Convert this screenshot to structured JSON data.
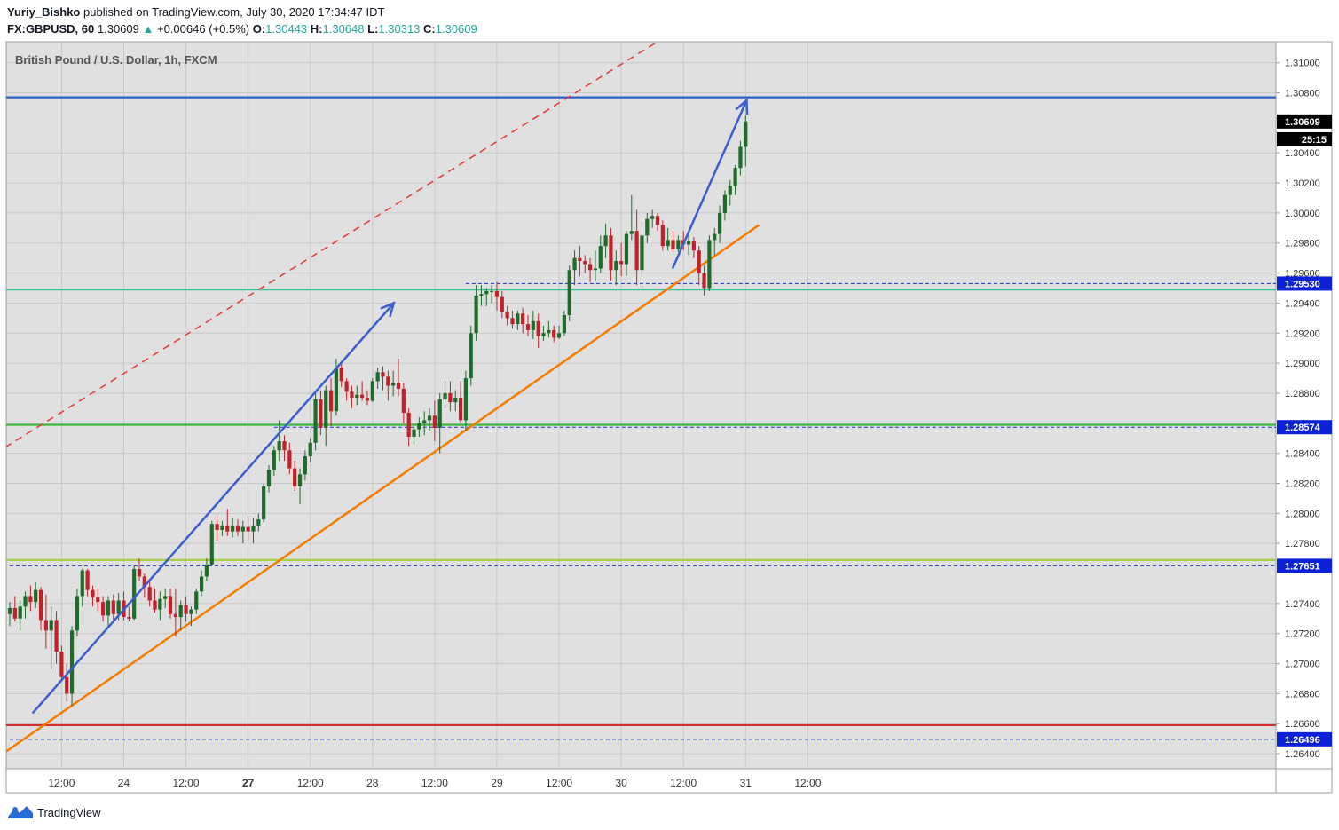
{
  "header": {
    "author": "Yuriy_Bishko",
    "published_text": "published on TradingView.com, July 30, 2020 17:34:47 IDT",
    "symbol": "FX:GBPUSD, 60",
    "last": "1.30609",
    "change": "+0.00646 (+0.5%)",
    "o_label": "O:",
    "o_value": "1.30443",
    "h_label": "H:",
    "h_value": "1.30648",
    "l_label": "L:",
    "l_value": "1.30313",
    "c_label": "C:",
    "c_value": "1.30609"
  },
  "footer": {
    "brand": "TradingView"
  },
  "chart_data": {
    "type": "candlestick",
    "title": "British Pound / U.S. Dollar, 1h, FXCM",
    "ylim": [
      1.263,
      1.3114
    ],
    "y_ticks": [
      "1.31000",
      "1.30800",
      "1.30400",
      "1.30200",
      "1.30000",
      "1.29800",
      "1.29600",
      "1.29400",
      "1.29200",
      "1.29000",
      "1.28800",
      "1.28400",
      "1.28200",
      "1.28000",
      "1.27800",
      "1.27400",
      "1.27200",
      "1.27000",
      "1.26800",
      "1.26600",
      "1.26400"
    ],
    "x_ticks": [
      {
        "label": "12:00",
        "bold": false,
        "bar": 10
      },
      {
        "label": "24",
        "bold": false,
        "bar": 22
      },
      {
        "label": "12:00",
        "bold": false,
        "bar": 34
      },
      {
        "label": "27",
        "bold": true,
        "bar": 46
      },
      {
        "label": "12:00",
        "bold": false,
        "bar": 58
      },
      {
        "label": "28",
        "bold": false,
        "bar": 70
      },
      {
        "label": "12:00",
        "bold": false,
        "bar": 82
      },
      {
        "label": "29",
        "bold": false,
        "bar": 94
      },
      {
        "label": "12:00",
        "bold": false,
        "bar": 106
      },
      {
        "label": "30",
        "bold": false,
        "bar": 118
      },
      {
        "label": "12:00",
        "bold": false,
        "bar": 130
      },
      {
        "label": "31",
        "bold": false,
        "bar": 142
      },
      {
        "label": "12:00",
        "bold": false,
        "bar": 154
      }
    ],
    "price_labels": [
      {
        "text": "1.30609",
        "value": 1.30609,
        "bg": "#000000"
      },
      {
        "text": "25:15",
        "value": 1.3049,
        "bg": "#000000"
      },
      {
        "text": "1.29530",
        "value": 1.2953,
        "bg": "#0b21d6"
      },
      {
        "text": "1.28574",
        "value": 1.28574,
        "bg": "#0b21d6"
      },
      {
        "text": "1.27651",
        "value": 1.27651,
        "bg": "#0b21d6"
      },
      {
        "text": "1.26496",
        "value": 1.26496,
        "bg": "#0b21d6"
      }
    ],
    "horizontal_lines": [
      {
        "value": 1.3077,
        "color": "#2962c9",
        "style": "solid"
      },
      {
        "value": 1.2949,
        "color": "#3fc79a",
        "style": "solid"
      },
      {
        "value": 1.2859,
        "color": "#3cb83c",
        "style": "solid"
      },
      {
        "value": 1.2769,
        "color": "#a3cf3d",
        "style": "solid"
      },
      {
        "value": 1.2659,
        "color": "#d32f2f",
        "style": "solid"
      },
      {
        "value": 1.2953,
        "color": "#1d2bd6",
        "style": "dashed",
        "from_bar": 88
      },
      {
        "value": 1.28574,
        "color": "#1d2bd6",
        "style": "dashed",
        "from_bar": 51
      },
      {
        "value": 1.27651,
        "color": "#1d2bd6",
        "style": "dashed",
        "from_bar": 0
      },
      {
        "value": 1.26496,
        "color": "#1d2bd6",
        "style": "dashed",
        "from_bar": 0
      }
    ],
    "trend_lines": [
      {
        "color": "#f57c00",
        "style": "solid",
        "width": 2.5,
        "p1": [
          -0.9,
          1.2641
        ],
        "p2": [
          144.6,
          1.2992
        ]
      },
      {
        "color": "#e53935",
        "style": "dashed",
        "width": 1.5,
        "p1": [
          -0.9,
          1.2844
        ],
        "p2": [
          125.0,
          1.3114
        ]
      }
    ],
    "arrows": [
      {
        "color": "#3a5fcd",
        "p1": [
          4.4,
          1.2667
        ],
        "p2": [
          74.1,
          1.294
        ]
      },
      {
        "color": "#3a5fcd",
        "p1": [
          127.9,
          1.2963
        ],
        "p2": [
          142.2,
          1.3075
        ]
      }
    ],
    "colors": {
      "up": "#1e6b2a",
      "down": "#c2202a",
      "grid": "#c8c8c8",
      "background": "#e0e0e0"
    },
    "candles": [
      [
        1.2733,
        1.2741,
        1.2725,
        1.2737
      ],
      [
        1.2737,
        1.2745,
        1.2728,
        1.273
      ],
      [
        1.273,
        1.2742,
        1.2722,
        1.2738
      ],
      [
        1.2738,
        1.2748,
        1.273,
        1.2745
      ],
      [
        1.2745,
        1.2752,
        1.2735,
        1.2741
      ],
      [
        1.2741,
        1.2754,
        1.2737,
        1.2749
      ],
      [
        1.2749,
        1.2751,
        1.2722,
        1.2729
      ],
      [
        1.2729,
        1.2746,
        1.271,
        1.2722
      ],
      [
        1.2722,
        1.2738,
        1.2696,
        1.2729
      ],
      [
        1.2729,
        1.2735,
        1.27,
        1.2708
      ],
      [
        1.2708,
        1.2712,
        1.269,
        1.2691
      ],
      [
        1.2691,
        1.27,
        1.2675,
        1.268
      ],
      [
        1.268,
        1.2725,
        1.2672,
        1.2722
      ],
      [
        1.2722,
        1.275,
        1.2718,
        1.2745
      ],
      [
        1.2745,
        1.2763,
        1.2738,
        1.2762
      ],
      [
        1.2762,
        1.2763,
        1.2745,
        1.2749
      ],
      [
        1.2749,
        1.2752,
        1.2738,
        1.2744
      ],
      [
        1.2744,
        1.275,
        1.2735,
        1.2741
      ],
      [
        1.2741,
        1.2745,
        1.2728,
        1.2732
      ],
      [
        1.2732,
        1.2745,
        1.2725,
        1.2742
      ],
      [
        1.2742,
        1.2746,
        1.2728,
        1.2733
      ],
      [
        1.2733,
        1.2747,
        1.2729,
        1.2742
      ],
      [
        1.2742,
        1.2748,
        1.2729,
        1.2731
      ],
      [
        1.2731,
        1.2738,
        1.2728,
        1.273
      ],
      [
        1.273,
        1.2765,
        1.2729,
        1.2763
      ],
      [
        1.2763,
        1.277,
        1.2755,
        1.2758
      ],
      [
        1.2758,
        1.276,
        1.2744,
        1.2751
      ],
      [
        1.2751,
        1.2755,
        1.2738,
        1.2742
      ],
      [
        1.2742,
        1.275,
        1.2734,
        1.2736
      ],
      [
        1.2736,
        1.2748,
        1.2729,
        1.2743
      ],
      [
        1.2743,
        1.275,
        1.2737,
        1.2745
      ],
      [
        1.2745,
        1.275,
        1.273,
        1.2733
      ],
      [
        1.2733,
        1.275,
        1.2718,
        1.2731
      ],
      [
        1.2731,
        1.2742,
        1.2722,
        1.2739
      ],
      [
        1.2739,
        1.2745,
        1.2728,
        1.2733
      ],
      [
        1.2733,
        1.2738,
        1.2725,
        1.2736
      ],
      [
        1.2736,
        1.275,
        1.2733,
        1.2748
      ],
      [
        1.2748,
        1.2762,
        1.2745,
        1.2758
      ],
      [
        1.2758,
        1.277,
        1.2755,
        1.2766
      ],
      [
        1.2766,
        1.2795,
        1.2765,
        1.2793
      ],
      [
        1.2793,
        1.2798,
        1.2782,
        1.2789
      ],
      [
        1.2789,
        1.2795,
        1.2785,
        1.2792
      ],
      [
        1.2792,
        1.2803,
        1.2785,
        1.2788
      ],
      [
        1.2788,
        1.2797,
        1.2784,
        1.2792
      ],
      [
        1.2792,
        1.2796,
        1.2785,
        1.2788
      ],
      [
        1.2788,
        1.2795,
        1.278,
        1.2791
      ],
      [
        1.2791,
        1.2798,
        1.2782,
        1.2788
      ],
      [
        1.2788,
        1.2797,
        1.278,
        1.2792
      ],
      [
        1.2792,
        1.28,
        1.2788,
        1.2796
      ],
      [
        1.2796,
        1.282,
        1.2794,
        1.2818
      ],
      [
        1.2818,
        1.2832,
        1.2814,
        1.2829
      ],
      [
        1.2829,
        1.2845,
        1.2825,
        1.2842
      ],
      [
        1.2842,
        1.2862,
        1.2835,
        1.2848
      ],
      [
        1.2848,
        1.2852,
        1.2835,
        1.2842
      ],
      [
        1.2842,
        1.2847,
        1.2826,
        1.283
      ],
      [
        1.283,
        1.2835,
        1.2815,
        1.2818
      ],
      [
        1.2818,
        1.283,
        1.2806,
        1.2826
      ],
      [
        1.2826,
        1.2842,
        1.2822,
        1.2838
      ],
      [
        1.2838,
        1.285,
        1.2834,
        1.2847
      ],
      [
        1.2847,
        1.288,
        1.2842,
        1.2876
      ],
      [
        1.2876,
        1.2882,
        1.2852,
        1.2857
      ],
      [
        1.2857,
        1.2885,
        1.2845,
        1.2882
      ],
      [
        1.2882,
        1.289,
        1.2858,
        1.2868
      ],
      [
        1.2868,
        1.2903,
        1.2865,
        1.2897
      ],
      [
        1.2897,
        1.29,
        1.2884,
        1.2888
      ],
      [
        1.2888,
        1.289,
        1.2875,
        1.2881
      ],
      [
        1.2881,
        1.2885,
        1.287,
        1.2877
      ],
      [
        1.2877,
        1.2885,
        1.2872,
        1.2879
      ],
      [
        1.2879,
        1.2888,
        1.2875,
        1.2877
      ],
      [
        1.2877,
        1.2882,
        1.2872,
        1.2875
      ],
      [
        1.2875,
        1.289,
        1.2874,
        1.2888
      ],
      [
        1.2888,
        1.2897,
        1.2883,
        1.2894
      ],
      [
        1.2894,
        1.2898,
        1.2882,
        1.2891
      ],
      [
        1.2891,
        1.2895,
        1.2875,
        1.2885
      ],
      [
        1.2885,
        1.2895,
        1.2878,
        1.2887
      ],
      [
        1.2887,
        1.2903,
        1.2878,
        1.2883
      ],
      [
        1.2883,
        1.2887,
        1.286,
        1.2867
      ],
      [
        1.2867,
        1.287,
        1.2845,
        1.2851
      ],
      [
        1.2851,
        1.286,
        1.2846,
        1.2856
      ],
      [
        1.2856,
        1.2864,
        1.2851,
        1.286
      ],
      [
        1.286,
        1.2868,
        1.2852,
        1.2862
      ],
      [
        1.2862,
        1.287,
        1.2855,
        1.2865
      ],
      [
        1.2865,
        1.2875,
        1.2848,
        1.2857
      ],
      [
        1.2857,
        1.288,
        1.284,
        1.2876
      ],
      [
        1.2876,
        1.2888,
        1.287,
        1.288
      ],
      [
        1.288,
        1.2888,
        1.2868,
        1.2874
      ],
      [
        1.2874,
        1.2882,
        1.2868,
        1.2877
      ],
      [
        1.2877,
        1.2888,
        1.286,
        1.2862
      ],
      [
        1.2862,
        1.2895,
        1.2855,
        1.289
      ],
      [
        1.289,
        1.2925,
        1.2885,
        1.292
      ],
      [
        1.292,
        1.2952,
        1.2915,
        1.2945
      ],
      [
        1.2945,
        1.2952,
        1.2938,
        1.2946
      ],
      [
        1.2946,
        1.295,
        1.2938,
        1.2948
      ],
      [
        1.2948,
        1.2952,
        1.294,
        1.2948
      ],
      [
        1.2948,
        1.2954,
        1.2935,
        1.2944
      ],
      [
        1.2944,
        1.2948,
        1.293,
        1.2934
      ],
      [
        1.2934,
        1.2938,
        1.2925,
        1.293
      ],
      [
        1.293,
        1.2935,
        1.2923,
        1.2926
      ],
      [
        1.2926,
        1.2935,
        1.2922,
        1.2933
      ],
      [
        1.2933,
        1.2937,
        1.292,
        1.2926
      ],
      [
        1.2926,
        1.2932,
        1.2918,
        1.2922
      ],
      [
        1.2922,
        1.2935,
        1.2916,
        1.2928
      ],
      [
        1.2928,
        1.2933,
        1.291,
        1.2918
      ],
      [
        1.2918,
        1.2925,
        1.2915,
        1.292
      ],
      [
        1.292,
        1.2928,
        1.2917,
        1.2922
      ],
      [
        1.2922,
        1.2925,
        1.2914,
        1.2917
      ],
      [
        1.2917,
        1.2925,
        1.2916,
        1.292
      ],
      [
        1.292,
        1.2935,
        1.2918,
        1.2932
      ],
      [
        1.2932,
        1.2965,
        1.2928,
        1.2962
      ],
      [
        1.2962,
        1.2975,
        1.2952,
        1.297
      ],
      [
        1.297,
        1.2978,
        1.2958,
        1.2968
      ],
      [
        1.2968,
        1.2972,
        1.296,
        1.2966
      ],
      [
        1.2966,
        1.297,
        1.2954,
        1.2962
      ],
      [
        1.2962,
        1.2975,
        1.2955,
        1.2963
      ],
      [
        1.2963,
        1.2985,
        1.296,
        1.2978
      ],
      [
        1.2978,
        1.2993,
        1.297,
        1.2985
      ],
      [
        1.2985,
        1.299,
        1.2955,
        1.2962
      ],
      [
        1.2962,
        1.2975,
        1.2952,
        1.2968
      ],
      [
        1.2968,
        1.298,
        1.2958,
        1.2966
      ],
      [
        1.2966,
        1.2988,
        1.2958,
        1.2986
      ],
      [
        1.2986,
        1.3012,
        1.2982,
        1.2988
      ],
      [
        1.2988,
        1.3002,
        1.2952,
        1.2962
      ],
      [
        1.2962,
        1.2995,
        1.295,
        1.2985
      ],
      [
        1.2985,
        1.3,
        1.298,
        1.2996
      ],
      [
        1.2996,
        1.3002,
        1.299,
        1.2998
      ],
      [
        1.2998,
        1.3,
        1.2988,
        1.2992
      ],
      [
        1.2992,
        1.2995,
        1.2975,
        1.2978
      ],
      [
        1.2978,
        1.299,
        1.2975,
        1.2982
      ],
      [
        1.2982,
        1.2988,
        1.2974,
        1.2976
      ],
      [
        1.2976,
        1.2985,
        1.2974,
        1.2982
      ],
      [
        1.2982,
        1.2988,
        1.2975,
        1.2979
      ],
      [
        1.2979,
        1.2985,
        1.2972,
        1.2981
      ],
      [
        1.2981,
        1.2984,
        1.297,
        1.2975
      ],
      [
        1.2975,
        1.2978,
        1.2952,
        1.296
      ],
      [
        1.296,
        1.2965,
        1.2945,
        1.295
      ],
      [
        1.295,
        1.2985,
        1.2948,
        1.2982
      ],
      [
        1.2982,
        1.299,
        1.2972,
        1.2986
      ],
      [
        1.2986,
        1.3005,
        1.298,
        1.3
      ],
      [
        1.3,
        1.3015,
        1.2995,
        1.3012
      ],
      [
        1.3012,
        1.3022,
        1.3005,
        1.3018
      ],
      [
        1.3018,
        1.3032,
        1.3012,
        1.303
      ],
      [
        1.303,
        1.3048,
        1.3025,
        1.3044
      ],
      [
        1.3044,
        1.3065,
        1.3031,
        1.3061
      ]
    ]
  }
}
